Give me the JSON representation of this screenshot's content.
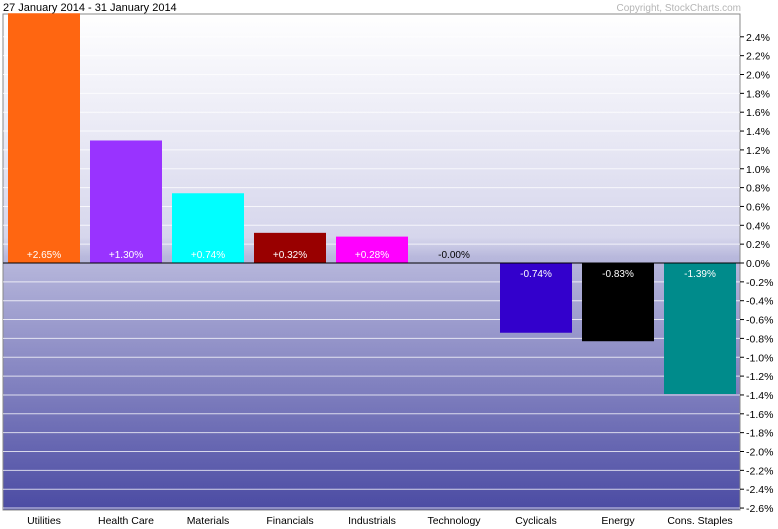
{
  "chart_data": {
    "type": "bar",
    "title": "27 January 2014 - 31 January 2014",
    "copyright": "Copyright, StockCharts.com",
    "categories": [
      "Utilities",
      "Health Care",
      "Materials",
      "Financials",
      "Industrials",
      "Technology",
      "Cyclicals",
      "Energy",
      "Cons. Staples"
    ],
    "values": [
      2.65,
      1.3,
      0.74,
      0.32,
      0.28,
      -0.0,
      -0.74,
      -0.83,
      -1.39
    ],
    "value_labels": [
      "+2.65%",
      "+1.30%",
      "+0.74%",
      "+0.32%",
      "+0.28%",
      "-0.00%",
      "-0.74%",
      "-0.83%",
      "-1.39%"
    ],
    "colors": [
      "#ff6611",
      "#9933ff",
      "#00ffff",
      "#990000",
      "#ff00ff",
      "#808080",
      "#3300cc",
      "#000000",
      "#008b8b"
    ],
    "ylim": [
      -2.7,
      2.6
    ],
    "yticks": [
      2.4,
      2.2,
      2.0,
      1.8,
      1.6,
      1.4,
      1.2,
      1.0,
      0.8,
      0.6,
      0.4,
      0.2,
      0.0,
      -0.2,
      -0.4,
      -0.6,
      -0.8,
      -1.0,
      -1.2,
      -1.4,
      -1.6,
      -1.8,
      -2.0,
      -2.2,
      -2.4,
      -2.6
    ],
    "ytick_labels": [
      "2.4%",
      "2.2%",
      "2.0%",
      "1.8%",
      "1.6%",
      "1.4%",
      "1.2%",
      "1.0%",
      "0.8%",
      "0.6%",
      "0.4%",
      "0.2%",
      "0.0%",
      "-0.2%",
      "-0.4%",
      "-0.6%",
      "-0.8%",
      "-1.0%",
      "-1.2%",
      "-1.4%",
      "-1.6%",
      "-1.8%",
      "-2.0%",
      "-2.2%",
      "-2.4%",
      "-2.6%"
    ],
    "axis_side": "right",
    "grid": true
  }
}
